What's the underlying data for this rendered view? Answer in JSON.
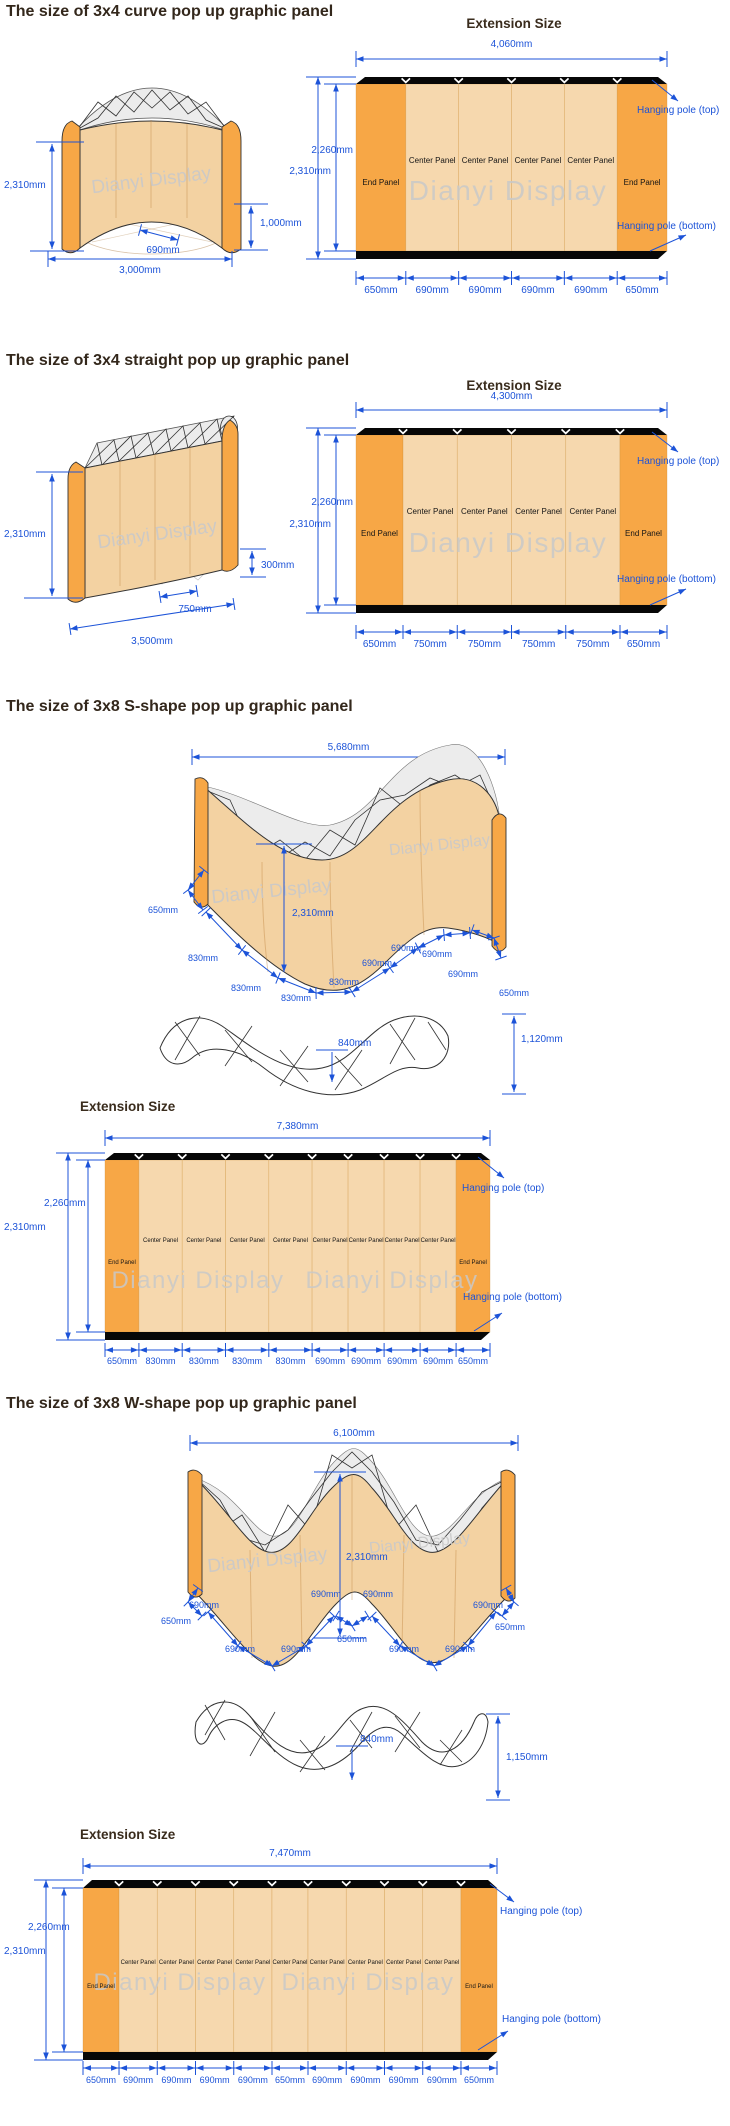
{
  "document": {
    "watermark": "Dianyi Display"
  },
  "colors": {
    "blue": "#1c53d8",
    "end_panel_orange": "#F7A746",
    "center_panel_tan": "#F6D8AE",
    "face_tan": "#F3D2A2",
    "bar_black": "#070707",
    "outline": "#333333",
    "truss_gray": "#ececec",
    "watermark_gray": "#c9c9c9",
    "title_text": "#33271b"
  },
  "sections": [
    {
      "id": "curve-3x4",
      "title": "The size of 3x4 curve pop up graphic panel",
      "drawing": {
        "height": "2,310mm",
        "panel_width": "690mm",
        "base_width": "3,000mm",
        "curve_depth": "1,000mm"
      },
      "extension": {
        "title": "Extension Size",
        "total_width": "4,060mm",
        "outer_height": "2,310mm",
        "inner_height": "2,260mm",
        "hanging_pole_top": "Hanging pole (top)",
        "hanging_pole_bottom": "Hanging pole (bottom)",
        "panels": [
          "End Panel",
          "Center Panel",
          "Center Panel",
          "Center Panel",
          "Center Panel",
          "End Panel"
        ],
        "segments": [
          "650mm",
          "690mm",
          "690mm",
          "690mm",
          "690mm",
          "650mm"
        ],
        "segment_values": [
          650,
          690,
          690,
          690,
          690,
          650
        ]
      }
    },
    {
      "id": "straight-3x4",
      "title": "The size of 3x4 straight pop up graphic panel",
      "drawing": {
        "height": "2,310mm",
        "edge_offset": "300mm",
        "panel_width": "750mm",
        "base_width": "3,500mm"
      },
      "extension": {
        "title": "Extension Size",
        "total_width": "4,300mm",
        "outer_height": "2,310mm",
        "inner_height": "2,260mm",
        "hanging_pole_top": "Hanging pole (top)",
        "hanging_pole_bottom": "Hanging pole (bottom)",
        "panels": [
          "End Panel",
          "Center Panel",
          "Center Panel",
          "Center Panel",
          "Center Panel",
          "End Panel"
        ],
        "segments": [
          "650mm",
          "750mm",
          "750mm",
          "750mm",
          "750mm",
          "650mm"
        ],
        "segment_values": [
          650,
          750,
          750,
          750,
          750,
          650
        ]
      }
    },
    {
      "id": "s-shape-3x8",
      "title": "The size of 3x8 S-shape pop up graphic panel",
      "drawing": {
        "total_width": "5,680mm",
        "height": "2,310mm",
        "segment_labels": [
          "650mm",
          "830mm",
          "830mm",
          "830mm",
          "830mm",
          "690mm",
          "690mm",
          "690mm",
          "690mm",
          "650mm"
        ],
        "top_view": {
          "panel_depth": "840mm",
          "overall_depth": "1,120mm"
        }
      },
      "extension": {
        "title": "Extension Size",
        "total_width": "7,380mm",
        "outer_height": "2,310mm",
        "inner_height": "2,260mm",
        "hanging_pole_top": "Hanging pole (top)",
        "hanging_pole_bottom": "Hanging pole (bottom)",
        "panels": [
          "End Panel",
          "Center Panel",
          "Center Panel",
          "Center Panel",
          "Center Panel",
          "Center Panel",
          "Center Panel",
          "Center Panel",
          "Center Panel",
          "End Panel"
        ],
        "segments": [
          "650mm",
          "830mm",
          "830mm",
          "830mm",
          "830mm",
          "690mm",
          "690mm",
          "690mm",
          "690mm",
          "650mm"
        ],
        "segment_values": [
          650,
          830,
          830,
          830,
          830,
          690,
          690,
          690,
          690,
          650
        ]
      }
    },
    {
      "id": "w-shape-3x8",
      "title": "The size of 3x8 W-shape pop up graphic panel",
      "drawing": {
        "total_width": "6,100mm",
        "height": "2,310mm",
        "segment_labels": [
          "650mm",
          "690mm",
          "690mm",
          "690mm",
          "690mm",
          "650mm",
          "690mm",
          "690mm",
          "690mm",
          "690mm",
          "650mm"
        ],
        "top_view": {
          "panel_depth": "840mm",
          "overall_depth": "1,150mm"
        }
      },
      "extension": {
        "title": "Extension Size",
        "total_width": "7,470mm",
        "outer_height": "2,310mm",
        "inner_height": "2,260mm",
        "hanging_pole_top": "Hanging pole (top)",
        "hanging_pole_bottom": "Hanging pole (bottom)",
        "panels": [
          "End Panel",
          "Center Panel",
          "Center Panel",
          "Center Panel",
          "Center Panel",
          "Center Panel",
          "Center Panel",
          "Center Panel",
          "Center Panel",
          "Center Panel",
          "End Panel"
        ],
        "segments": [
          "650mm",
          "690mm",
          "690mm",
          "690mm",
          "690mm",
          "650mm",
          "690mm",
          "690mm",
          "690mm",
          "690mm",
          "650mm"
        ],
        "segment_values": [
          650,
          690,
          690,
          690,
          690,
          650,
          690,
          690,
          690,
          690,
          650
        ]
      }
    }
  ]
}
